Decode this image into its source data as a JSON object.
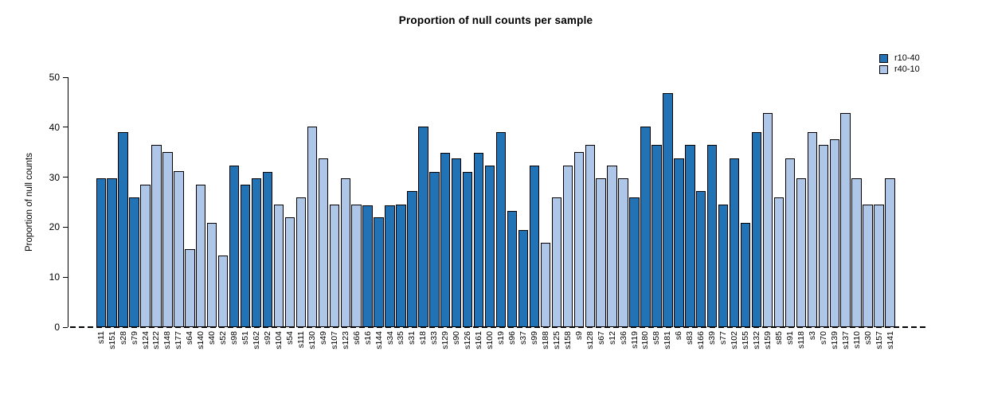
{
  "title": "Proportion of null counts per sample",
  "legend": [
    {
      "label": "r10-40",
      "color": "#2273B5"
    },
    {
      "label": "r40-10",
      "color": "#AEC7E8"
    }
  ],
  "y_axis": {
    "label": "Proportion of null counts",
    "ticks": [
      0,
      10,
      20,
      30,
      40,
      50
    ]
  },
  "chart_data": {
    "type": "bar",
    "title": "Proportion of null counts per sample",
    "xlabel": "",
    "ylabel": "Proportion of null counts",
    "ylim": [
      0,
      50
    ],
    "yticks": [
      0,
      10,
      20,
      30,
      40,
      50
    ],
    "grid": false,
    "legend_position": "top-right",
    "baseline_style": "dashed",
    "series": [
      {
        "name": "r10-40",
        "color": "#2273B5"
      },
      {
        "name": "r40-10",
        "color": "#AEC7E8"
      }
    ],
    "samples": [
      {
        "id": "s11",
        "value": 29.8,
        "group": "r10-40"
      },
      {
        "id": "s151",
        "value": 29.8,
        "group": "r10-40"
      },
      {
        "id": "s28",
        "value": 39.0,
        "group": "r10-40"
      },
      {
        "id": "s79",
        "value": 26.0,
        "group": "r10-40"
      },
      {
        "id": "s124",
        "value": 28.5,
        "group": "r40-10"
      },
      {
        "id": "s122",
        "value": 36.4,
        "group": "r40-10"
      },
      {
        "id": "s148",
        "value": 35.0,
        "group": "r40-10"
      },
      {
        "id": "s177",
        "value": 31.2,
        "group": "r40-10"
      },
      {
        "id": "s64",
        "value": 15.6,
        "group": "r40-10"
      },
      {
        "id": "s140",
        "value": 28.5,
        "group": "r40-10"
      },
      {
        "id": "s40",
        "value": 20.8,
        "group": "r40-10"
      },
      {
        "id": "s52",
        "value": 14.3,
        "group": "r40-10"
      },
      {
        "id": "s98",
        "value": 32.4,
        "group": "r10-40"
      },
      {
        "id": "s51",
        "value": 28.5,
        "group": "r10-40"
      },
      {
        "id": "s162",
        "value": 29.8,
        "group": "r10-40"
      },
      {
        "id": "s92",
        "value": 31.1,
        "group": "r10-40"
      },
      {
        "id": "s104",
        "value": 24.5,
        "group": "r40-10"
      },
      {
        "id": "s54",
        "value": 22.0,
        "group": "r40-10"
      },
      {
        "id": "s111",
        "value": 26.0,
        "group": "r40-10"
      },
      {
        "id": "s130",
        "value": 40.2,
        "group": "r40-10"
      },
      {
        "id": "s49",
        "value": 33.8,
        "group": "r40-10"
      },
      {
        "id": "s107",
        "value": 24.5,
        "group": "r40-10"
      },
      {
        "id": "s123",
        "value": 29.8,
        "group": "r40-10"
      },
      {
        "id": "s66",
        "value": 24.5,
        "group": "r40-10"
      },
      {
        "id": "s16",
        "value": 24.4,
        "group": "r10-40"
      },
      {
        "id": "s144",
        "value": 22.0,
        "group": "r10-40"
      },
      {
        "id": "s34",
        "value": 24.4,
        "group": "r10-40"
      },
      {
        "id": "s35",
        "value": 24.5,
        "group": "r10-40"
      },
      {
        "id": "s31",
        "value": 27.2,
        "group": "r10-40"
      },
      {
        "id": "s18",
        "value": 40.2,
        "group": "r10-40"
      },
      {
        "id": "s33",
        "value": 31.1,
        "group": "r10-40"
      },
      {
        "id": "s129",
        "value": 34.9,
        "group": "r10-40"
      },
      {
        "id": "s90",
        "value": 33.7,
        "group": "r10-40"
      },
      {
        "id": "s126",
        "value": 31.1,
        "group": "r10-40"
      },
      {
        "id": "s161",
        "value": 34.9,
        "group": "r10-40"
      },
      {
        "id": "s100",
        "value": 32.4,
        "group": "r10-40"
      },
      {
        "id": "s19",
        "value": 39.0,
        "group": "r10-40"
      },
      {
        "id": "s96",
        "value": 23.3,
        "group": "r10-40"
      },
      {
        "id": "s37",
        "value": 19.5,
        "group": "r10-40"
      },
      {
        "id": "s99",
        "value": 32.4,
        "group": "r10-40"
      },
      {
        "id": "s188",
        "value": 16.9,
        "group": "r40-10"
      },
      {
        "id": "s125",
        "value": 26.0,
        "group": "r40-10"
      },
      {
        "id": "s158",
        "value": 32.4,
        "group": "r40-10"
      },
      {
        "id": "s9",
        "value": 35.0,
        "group": "r40-10"
      },
      {
        "id": "s128",
        "value": 36.4,
        "group": "r40-10"
      },
      {
        "id": "s67",
        "value": 29.8,
        "group": "r40-10"
      },
      {
        "id": "s12",
        "value": 32.4,
        "group": "r40-10"
      },
      {
        "id": "s36",
        "value": 29.8,
        "group": "r40-10"
      },
      {
        "id": "s119",
        "value": 26.0,
        "group": "r10-40"
      },
      {
        "id": "s180",
        "value": 40.2,
        "group": "r10-40"
      },
      {
        "id": "s58",
        "value": 36.4,
        "group": "r10-40"
      },
      {
        "id": "s181",
        "value": 46.8,
        "group": "r10-40"
      },
      {
        "id": "s6",
        "value": 33.8,
        "group": "r10-40"
      },
      {
        "id": "s83",
        "value": 36.4,
        "group": "r10-40"
      },
      {
        "id": "s166",
        "value": 27.3,
        "group": "r10-40"
      },
      {
        "id": "s39",
        "value": 36.4,
        "group": "r10-40"
      },
      {
        "id": "s77",
        "value": 24.5,
        "group": "r10-40"
      },
      {
        "id": "s102",
        "value": 33.8,
        "group": "r10-40"
      },
      {
        "id": "s155",
        "value": 20.9,
        "group": "r10-40"
      },
      {
        "id": "s132",
        "value": 39.0,
        "group": "r10-40"
      },
      {
        "id": "s159",
        "value": 42.8,
        "group": "r40-10"
      },
      {
        "id": "s85",
        "value": 26.0,
        "group": "r40-10"
      },
      {
        "id": "s91",
        "value": 33.8,
        "group": "r40-10"
      },
      {
        "id": "s118",
        "value": 29.8,
        "group": "r40-10"
      },
      {
        "id": "s3",
        "value": 39.0,
        "group": "r40-10"
      },
      {
        "id": "s70",
        "value": 36.4,
        "group": "r40-10"
      },
      {
        "id": "s139",
        "value": 37.6,
        "group": "r40-10"
      },
      {
        "id": "s137",
        "value": 42.8,
        "group": "r40-10"
      },
      {
        "id": "s110",
        "value": 29.8,
        "group": "r40-10"
      },
      {
        "id": "s30",
        "value": 24.5,
        "group": "r40-10"
      },
      {
        "id": "s157",
        "value": 24.5,
        "group": "r40-10"
      },
      {
        "id": "s141",
        "value": 29.8,
        "group": "r40-10"
      }
    ]
  }
}
